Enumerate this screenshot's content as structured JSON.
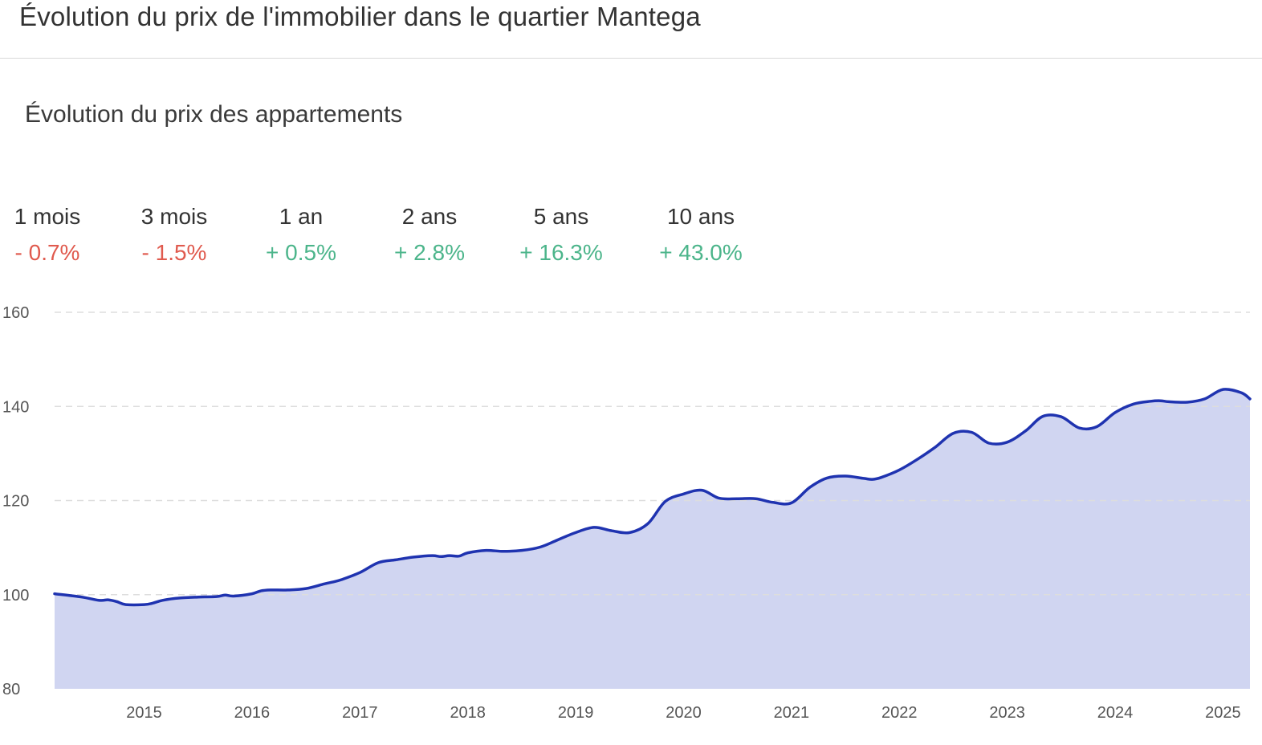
{
  "header": {
    "title": "Évolution du prix de l'immobilier dans le quartier Mantega"
  },
  "chart_title": "Évolution du prix des appartements",
  "stats": [
    {
      "label": "1 mois",
      "value": "- 0.7%",
      "trend": "negative"
    },
    {
      "label": "3 mois",
      "value": "- 1.5%",
      "trend": "negative"
    },
    {
      "label": "1 an",
      "value": "+ 0.5%",
      "trend": "positive"
    },
    {
      "label": "2 ans",
      "value": "+ 2.8%",
      "trend": "positive"
    },
    {
      "label": "5 ans",
      "value": "+ 16.3%",
      "trend": "positive"
    },
    {
      "label": "10 ans",
      "value": "+ 43.0%",
      "trend": "positive"
    }
  ],
  "colors": {
    "line": "#1f33b0",
    "area": "#d0d5f1",
    "negative": "#e05a4e",
    "positive": "#4cb58b",
    "grid": "#dddddd"
  },
  "chart_data": {
    "type": "area",
    "title": "Évolution du prix des appartements",
    "xlabel": "",
    "ylabel": "",
    "ylim": [
      80,
      160
    ],
    "yticks": [
      80,
      100,
      120,
      140,
      160
    ],
    "xlim": [
      2014.17,
      2025.25
    ],
    "xticks": [
      2015,
      2016,
      2017,
      2018,
      2019,
      2020,
      2021,
      2022,
      2023,
      2024,
      2025
    ],
    "grid": true,
    "legend": "none",
    "series": [
      {
        "x": [
          2014.17,
          2014.42,
          2014.58,
          2014.67,
          2014.75,
          2014.83,
          2015.0,
          2015.08,
          2015.17,
          2015.33,
          2015.5,
          2015.67,
          2015.75,
          2015.83,
          2016.0,
          2016.08,
          2016.17,
          2016.33,
          2016.5,
          2016.67,
          2016.75,
          2016.83,
          2017.0,
          2017.17,
          2017.33,
          2017.5,
          2017.67,
          2017.75,
          2017.83,
          2017.92,
          2018.0,
          2018.17,
          2018.33,
          2018.5,
          2018.67,
          2018.83,
          2019.0,
          2019.17,
          2019.33,
          2019.5,
          2019.67,
          2019.83,
          2020.0,
          2020.17,
          2020.33,
          2020.5,
          2020.67,
          2020.83,
          2021.0,
          2021.17,
          2021.33,
          2021.5,
          2021.67,
          2021.75,
          2021.83,
          2022.0,
          2022.17,
          2022.33,
          2022.5,
          2022.67,
          2022.83,
          2023.0,
          2023.17,
          2023.33,
          2023.5,
          2023.67,
          2023.83,
          2024.0,
          2024.17,
          2024.33,
          2024.42,
          2024.5,
          2024.67,
          2024.83,
          2025.0,
          2025.17,
          2025.25
        ],
        "values": [
          100.2,
          99.5,
          98.8,
          98.9,
          98.5,
          97.9,
          97.9,
          98.2,
          98.8,
          99.3,
          99.5,
          99.6,
          99.9,
          99.7,
          100.2,
          100.8,
          101.0,
          101.0,
          101.3,
          102.3,
          102.7,
          103.2,
          104.7,
          106.8,
          107.4,
          108.0,
          108.3,
          108.1,
          108.3,
          108.2,
          108.9,
          109.4,
          109.2,
          109.4,
          110.1,
          111.6,
          113.2,
          114.3,
          113.6,
          113.2,
          115.1,
          119.8,
          121.4,
          122.2,
          120.5,
          120.4,
          120.4,
          119.6,
          119.5,
          122.8,
          124.8,
          125.2,
          124.7,
          124.5,
          124.9,
          126.5,
          128.8,
          131.3,
          134.3,
          134.5,
          132.2,
          132.4,
          134.8,
          137.9,
          137.8,
          135.4,
          135.7,
          138.7,
          140.5,
          141.1,
          141.2,
          141.0,
          140.9,
          141.6,
          143.6,
          142.9,
          141.6
        ]
      }
    ]
  }
}
